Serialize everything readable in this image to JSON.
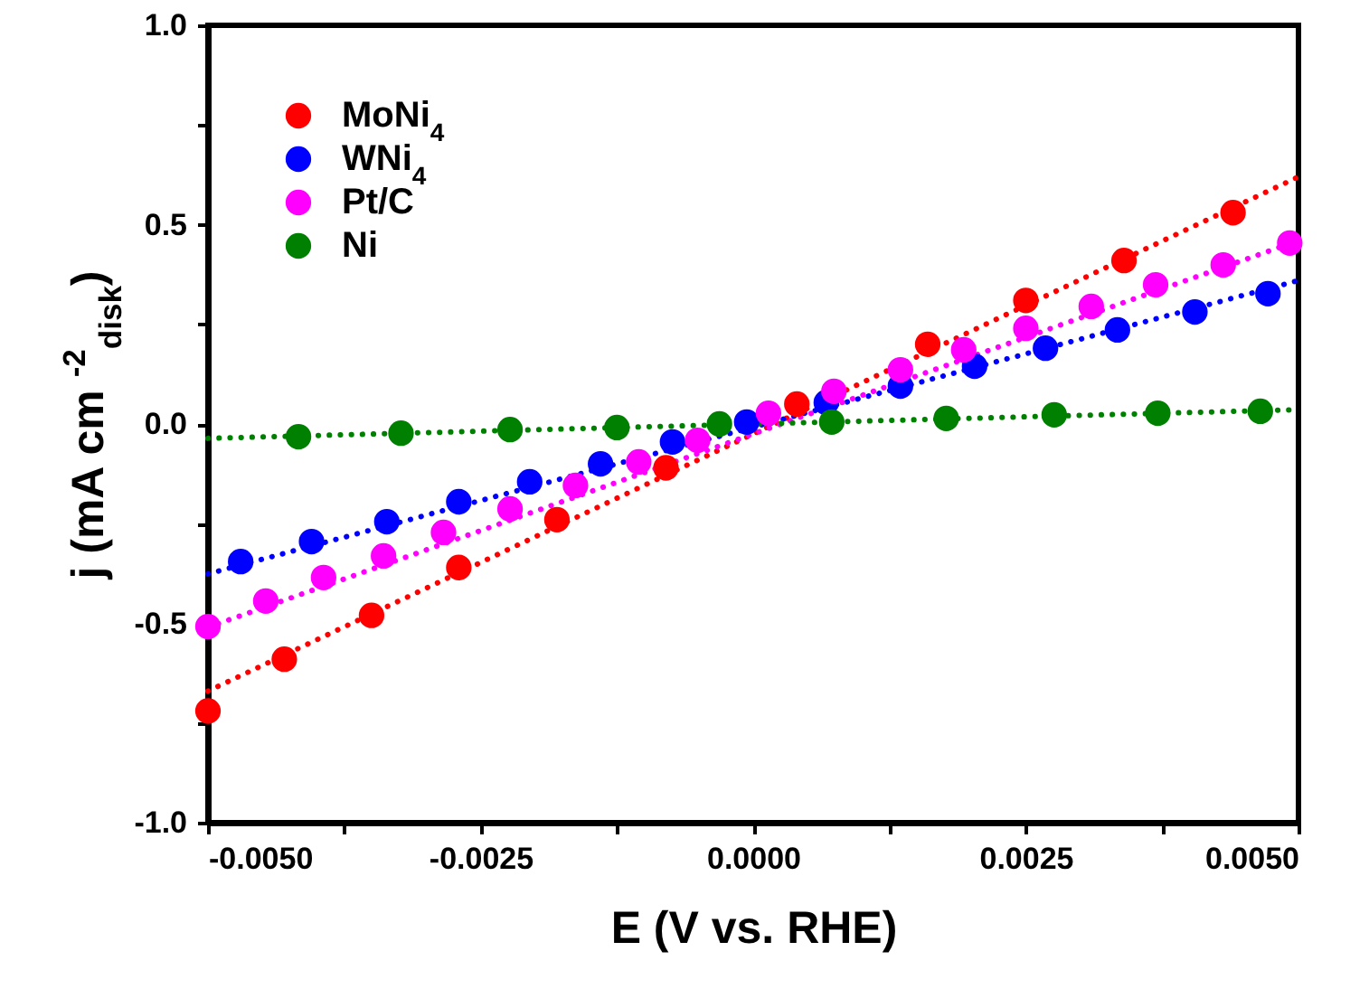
{
  "chart_data": {
    "type": "scatter",
    "xlabel": "E (V vs. RHE)",
    "ylabel": "j (mA cm $^{-2}$$_{disk}$)",
    "xlim": [
      -0.005,
      0.005
    ],
    "ylim": [
      -1.0,
      1.0
    ],
    "xticks": [
      {
        "value": -0.005,
        "label": "-0.0050"
      },
      {
        "value": -0.00375,
        "label": null
      },
      {
        "value": -0.0025,
        "label": "-0.0025"
      },
      {
        "value": -0.00125,
        "label": null
      },
      {
        "value": 0,
        "label": "0.0000"
      },
      {
        "value": 0.00125,
        "label": null
      },
      {
        "value": 0.0025,
        "label": "0.0025"
      },
      {
        "value": 0.00375,
        "label": null
      },
      {
        "value": 0.005,
        "label": "0.0050"
      }
    ],
    "yticks": [
      {
        "value": -1,
        "label": "-1.0"
      },
      {
        "value": -0.75,
        "label": null
      },
      {
        "value": -0.5,
        "label": "-0.5"
      },
      {
        "value": -0.25,
        "label": null
      },
      {
        "value": 0,
        "label": "0.0"
      },
      {
        "value": 0.25,
        "label": null
      },
      {
        "value": 0.5,
        "label": "0.5"
      },
      {
        "value": 0.75,
        "label": null
      },
      {
        "value": 1,
        "label": "1.0"
      }
    ],
    "grid": false,
    "legend": "top left",
    "series": [
      {
        "name": "MoNi$_{4}$",
        "color": "#ff0000",
        "marker": "circle",
        "x": [
          -0.005,
          -0.0043,
          -0.0035,
          -0.0027,
          -0.0018,
          -0.0008,
          0.0004,
          0.0016,
          0.0025,
          0.0034,
          0.0044
        ],
        "values": [
          -0.72,
          -0.59,
          -0.48,
          -0.36,
          -0.24,
          -0.11,
          0.05,
          0.2,
          0.31,
          0.41,
          0.53
        ]
      },
      {
        "name": "WNi$_{4}$",
        "color": "#0000ff",
        "marker": "circle",
        "x": [
          -0.0047,
          -0.00405,
          -0.00336,
          -0.0027,
          -0.00205,
          -0.0014,
          -0.00074,
          -6e-05,
          0.00067,
          0.00135,
          0.00203,
          0.00268,
          0.00334,
          0.00405,
          0.00472
        ],
        "values": [
          -0.345,
          -0.295,
          -0.245,
          -0.195,
          -0.145,
          -0.1,
          -0.045,
          0.005,
          0.054,
          0.095,
          0.145,
          0.19,
          0.236,
          0.281,
          0.327
        ]
      },
      {
        "name": "Pt/C",
        "color": "#ff00ff",
        "marker": "circle",
        "x": [
          -0.005,
          -0.00447,
          -0.00394,
          -0.00339,
          -0.00284,
          -0.00223,
          -0.00163,
          -0.00105,
          -0.00051,
          0.00014,
          0.00074,
          0.00135,
          0.00193,
          0.0025,
          0.0031,
          0.00369,
          0.00431,
          0.00492
        ],
        "values": [
          -0.508,
          -0.444,
          -0.385,
          -0.331,
          -0.272,
          -0.213,
          -0.154,
          -0.095,
          -0.041,
          0.027,
          0.082,
          0.136,
          0.186,
          0.24,
          0.295,
          0.349,
          0.399,
          0.454
        ]
      },
      {
        "name": "Ni",
        "color": "#008000",
        "marker": "circle",
        "x": [
          -0.00417,
          -0.00323,
          -0.00223,
          -0.00125,
          -0.00031,
          0.00072,
          0.00177,
          0.00276,
          0.00371,
          0.00465
        ],
        "values": [
          -0.032,
          -0.023,
          -0.014,
          -0.009,
          0,
          0.005,
          0.014,
          0.023,
          0.027,
          0.032
        ]
      },
      {
        "type": "line",
        "color": "#ff0000",
        "line_style": "dotted",
        "x": [
          -0.005,
          0.005
        ],
        "values": [
          -0.67,
          0.62
        ]
      },
      {
        "type": "line",
        "color": "#0000ff",
        "line_style": "dotted",
        "x": [
          -0.005,
          0.005
        ],
        "values": [
          -0.376,
          0.36
        ]
      },
      {
        "type": "line",
        "color": "#ff00ff",
        "line_style": "dotted",
        "x": [
          -0.005,
          0.005
        ],
        "values": [
          -0.51,
          0.46
        ]
      },
      {
        "type": "line",
        "color": "#008000",
        "line_style": "dotted",
        "x": [
          -0.005,
          0.005
        ],
        "values": [
          -0.036,
          0.036
        ]
      }
    ]
  }
}
